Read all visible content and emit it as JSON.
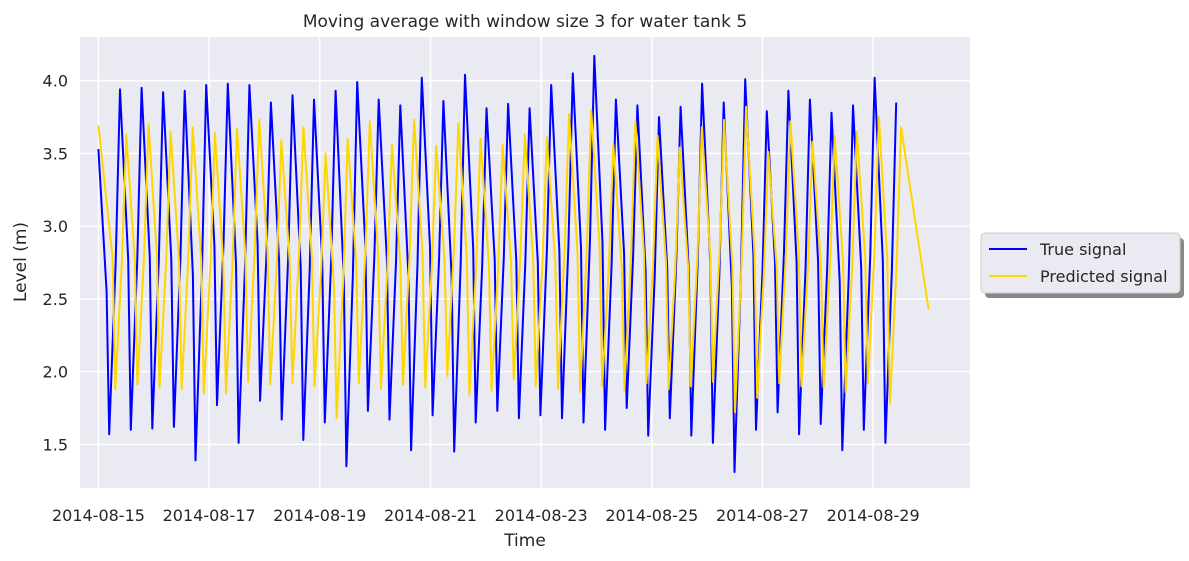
{
  "chart_data": {
    "type": "line",
    "title": "Moving average with window size 3 for water tank 5",
    "xlabel": "Time",
    "ylabel": "Level (m)",
    "x_start": "2014-08-15",
    "x_end": "2014-08-30",
    "xlim": [
      "2014-08-14 16:00",
      "2014-08-30 18:00"
    ],
    "ylim": [
      1.2,
      4.3
    ],
    "grid": true,
    "legend_position": "outside-right",
    "xticks": [
      "2014-08-15",
      "2014-08-17",
      "2014-08-19",
      "2014-08-21",
      "2014-08-23",
      "2014-08-25",
      "2014-08-27",
      "2014-08-29"
    ],
    "yticks": [
      "1.5",
      "2.0",
      "2.5",
      "3.0",
      "3.5",
      "4.0"
    ],
    "series": [
      {
        "name": "True signal",
        "color": "#0000ff",
        "peaks": [
          3.53,
          3.94,
          3.95,
          3.92,
          3.93,
          3.97,
          3.98,
          3.97,
          3.85,
          3.9,
          3.87,
          3.93,
          3.99,
          3.87,
          3.83,
          4.02,
          3.86,
          4.04,
          3.81,
          3.84,
          3.81,
          3.97,
          4.05,
          4.17,
          3.87,
          3.83,
          3.75,
          3.82,
          3.98,
          3.85,
          4.01,
          3.79,
          3.93,
          3.87,
          3.78,
          3.83,
          4.02,
          3.85,
          3.49
        ],
        "troughs": [
          1.57,
          1.6,
          1.61,
          1.62,
          1.39,
          1.77,
          1.51,
          1.8,
          1.67,
          1.53,
          1.65,
          1.35,
          1.73,
          1.67,
          1.46,
          1.7,
          1.45,
          1.65,
          1.73,
          1.68,
          1.7,
          1.68,
          1.65,
          1.6,
          1.75,
          1.56,
          1.68,
          1.56,
          1.51,
          1.31,
          1.6,
          1.72,
          1.57,
          1.64,
          1.46,
          1.6,
          1.51
        ]
      },
      {
        "name": "Predicted signal",
        "color": "#ffd700",
        "peaks": [
          3.69,
          3.63,
          3.7,
          3.65,
          3.68,
          3.64,
          3.67,
          3.73,
          3.59,
          3.68,
          3.5,
          3.6,
          3.72,
          3.56,
          3.73,
          3.55,
          3.71,
          3.6,
          3.56,
          3.63,
          3.61,
          3.77,
          3.8,
          3.56,
          3.72,
          3.62,
          3.54,
          3.68,
          3.73,
          3.82,
          3.51,
          3.72,
          3.58,
          3.62,
          3.65,
          3.75,
          3.68,
          3.55
        ],
        "troughs": [
          1.88,
          1.91,
          1.89,
          1.88,
          1.85,
          1.85,
          1.93,
          1.91,
          1.92,
          1.9,
          1.68,
          1.92,
          1.88,
          1.91,
          1.89,
          1.97,
          1.84,
          1.87,
          1.95,
          1.9,
          1.88,
          1.86,
          1.9,
          1.87,
          1.92,
          1.88,
          1.9,
          1.93,
          1.72,
          1.82,
          1.92,
          1.9,
          1.89,
          1.86,
          1.92,
          1.78
        ],
        "end_value": 2.43
      }
    ]
  }
}
